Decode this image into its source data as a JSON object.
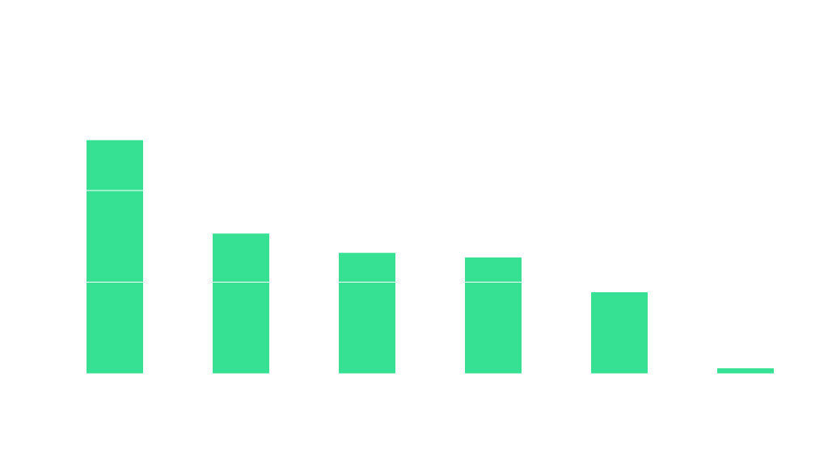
{
  "chart_data": {
    "type": "bar",
    "categories": [
      "",
      "",
      "",
      "",
      "",
      ""
    ],
    "values": [
      2.55,
      1.53,
      1.32,
      1.27,
      0.89,
      0.06
    ],
    "ylim": [
      0,
      3
    ],
    "grid": true,
    "bar_color": "#36e194",
    "gridline_color": "#ffffff",
    "gridlines_at": [
      0,
      1,
      2
    ]
  }
}
